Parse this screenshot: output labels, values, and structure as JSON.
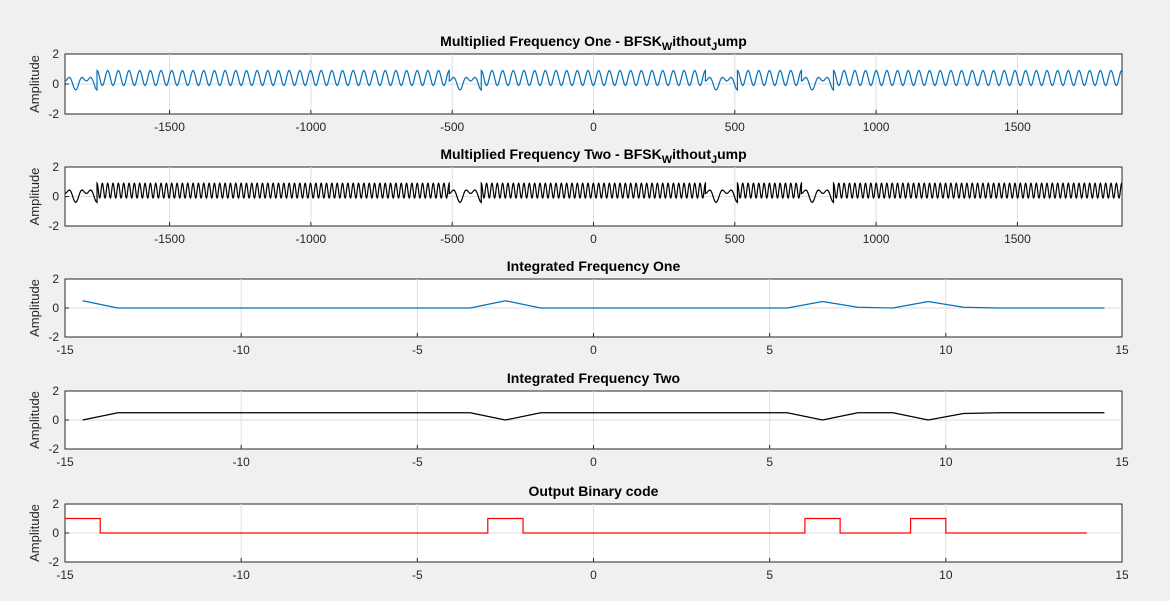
{
  "chart_data": [
    {
      "type": "line",
      "title": {
        "main": "Multiplied Frequency One - BFSK",
        "sub1": "W",
        "mid": "ithout",
        "sub2": "J",
        "end": "ump"
      },
      "ylabel": "Amplitude",
      "xlim": [
        -1870,
        1870
      ],
      "ylim": [
        -2,
        2
      ],
      "xticks": [
        -1500,
        -1000,
        -500,
        0,
        500,
        1000,
        1500
      ],
      "yticks": [
        2,
        0,
        -2
      ],
      "grid": true,
      "color": "#0072bd",
      "series": [
        {
          "kind": "multiplied",
          "segment_length": 113.3,
          "x_start": -1870,
          "bits": [
            1,
            0,
            0,
            0,
            0,
            0,
            0,
            0,
            0,
            0,
            0,
            0,
            1,
            0,
            0,
            0,
            0,
            0,
            0,
            0,
            1,
            0,
            0,
            1,
            0,
            0,
            0,
            0,
            0,
            0,
            0,
            0,
            0,
            0
          ],
          "periods_when_bit_1": 1.5,
          "periods_when_bit_0": 3
        }
      ]
    },
    {
      "type": "line",
      "title": {
        "main": "Multiplied Frequency Two - BFSK",
        "sub1": "W",
        "mid": "ithout",
        "sub2": "J",
        "end": "ump"
      },
      "ylabel": "Amplitude",
      "xlim": [
        -1870,
        1870
      ],
      "ylim": [
        -2,
        2
      ],
      "xticks": [
        -1500,
        -1000,
        -500,
        0,
        500,
        1000,
        1500
      ],
      "yticks": [
        2,
        0,
        -2
      ],
      "grid": true,
      "color": "#000000",
      "series": [
        {
          "kind": "multiplied",
          "segment_length": 113.3,
          "x_start": -1870,
          "bits": [
            0,
            1,
            1,
            1,
            1,
            1,
            1,
            1,
            1,
            1,
            1,
            1,
            0,
            1,
            1,
            1,
            1,
            1,
            1,
            1,
            0,
            1,
            1,
            0,
            1,
            1,
            1,
            1,
            1,
            1,
            1,
            1,
            1,
            1
          ],
          "periods_when_bit_1": 6,
          "periods_when_bit_0": 1.5
        }
      ]
    },
    {
      "type": "line",
      "title": {
        "main": "Integrated Frequency One"
      },
      "ylabel": "Amplitude",
      "xlim": [
        -15,
        15
      ],
      "ylim": [
        -2,
        2
      ],
      "xticks": [
        -15,
        -10,
        -5,
        0,
        5,
        10,
        15
      ],
      "yticks": [
        2,
        0,
        -2
      ],
      "grid": true,
      "color": "#0072bd",
      "series": [
        {
          "x": [
            -14.5,
            -13.5,
            -12.5,
            -11.5,
            -10.5,
            -9.5,
            -8.5,
            -7.5,
            -6.5,
            -5.5,
            -4.5,
            -3.5,
            -2.5,
            -1.5,
            -0.5,
            0.5,
            1.5,
            2.5,
            3.5,
            4.5,
            5.5,
            6.5,
            7.5,
            8.5,
            9.5,
            10.5,
            11.5,
            12.5,
            13.5,
            14.5
          ],
          "y": [
            0.5,
            0,
            0,
            0,
            0,
            0,
            0,
            0,
            0,
            0,
            0,
            0,
            0.5,
            0,
            0,
            0,
            0,
            0,
            0,
            0,
            0,
            0.45,
            0.05,
            0,
            0.45,
            0.05,
            0,
            0,
            0,
            0
          ]
        }
      ]
    },
    {
      "type": "line",
      "title": {
        "main": "Integrated Frequency Two"
      },
      "ylabel": "Amplitude",
      "xlim": [
        -15,
        15
      ],
      "ylim": [
        -2,
        2
      ],
      "xticks": [
        -15,
        -10,
        -5,
        0,
        5,
        10,
        15
      ],
      "yticks": [
        2,
        0,
        -2
      ],
      "grid": true,
      "color": "#000000",
      "series": [
        {
          "x": [
            -14.5,
            -13.5,
            -12.5,
            -11.5,
            -10.5,
            -9.5,
            -8.5,
            -7.5,
            -6.5,
            -5.5,
            -4.5,
            -3.5,
            -2.5,
            -1.5,
            -0.5,
            0.5,
            1.5,
            2.5,
            3.5,
            4.5,
            5.5,
            6.5,
            7.5,
            8.5,
            9.5,
            10.5,
            11.5,
            12.5,
            13.5,
            14.5
          ],
          "y": [
            0,
            0.5,
            0.5,
            0.5,
            0.5,
            0.5,
            0.5,
            0.5,
            0.5,
            0.5,
            0.5,
            0.5,
            0,
            0.5,
            0.5,
            0.5,
            0.5,
            0.5,
            0.5,
            0.5,
            0.5,
            0,
            0.5,
            0.5,
            0,
            0.45,
            0.5,
            0.5,
            0.5,
            0.5
          ]
        }
      ]
    },
    {
      "type": "line",
      "title": {
        "main": "Output Binary code"
      },
      "ylabel": "Amplitude",
      "xlim": [
        -15,
        15
      ],
      "ylim": [
        -2,
        2
      ],
      "xticks": [
        -15,
        -10,
        -5,
        0,
        5,
        10,
        15
      ],
      "yticks": [
        2,
        0,
        -2
      ],
      "grid": true,
      "color": "#ff0000",
      "series": [
        {
          "kind": "step",
          "x": [
            -15,
            -14,
            -14,
            -3,
            -3,
            -2,
            -2,
            6,
            6,
            7,
            7,
            9,
            9,
            10,
            10,
            14
          ],
          "y": [
            1,
            1,
            0,
            0,
            1,
            1,
            0,
            0,
            1,
            1,
            0,
            0,
            1,
            1,
            0,
            0
          ]
        }
      ]
    }
  ]
}
